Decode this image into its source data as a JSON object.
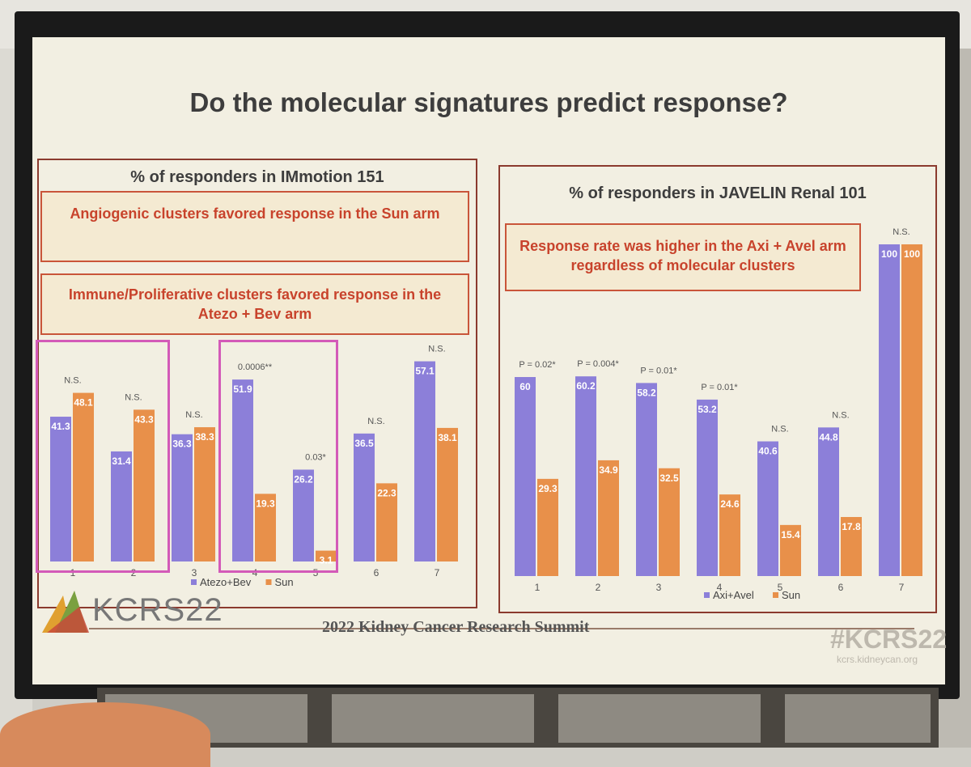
{
  "slide": {
    "title": "Do the molecular signatures predict response?",
    "left": {
      "panel_title": "% of responders in IMmotion 151",
      "callout1": "Angiogenic clusters favored response in the Sun arm",
      "callout2": "Immune/Proliferative clusters favored response in the Atezo + Bev arm"
    },
    "right": {
      "panel_title": "% of responders in JAVELIN Renal 101",
      "callout": "Response rate was higher in the Axi + Avel arm regardless of molecular clusters"
    },
    "logo": {
      "text": "KCRS22"
    },
    "footer": "2022 Kidney Cancer Research Summit",
    "hashtag": "#KCRS22",
    "url": "kcrs.kidneycan.org"
  },
  "colors": {
    "purple": "#8c7fd9",
    "orange": "#e8904a",
    "highlight": "#d35ab8",
    "accent": "#c8432c"
  },
  "chart_data": [
    {
      "type": "bar",
      "categories": [
        "1",
        "2",
        "3",
        "4",
        "5",
        "6",
        "7"
      ],
      "series": [
        {
          "name": "Atezo+Bev",
          "values": [
            41.3,
            31.4,
            36.3,
            51.9,
            26.2,
            36.5,
            57.1
          ]
        },
        {
          "name": "Sun",
          "values": [
            48.1,
            43.3,
            38.3,
            19.3,
            3.1,
            22.3,
            38.1
          ]
        }
      ],
      "annotations": [
        "N.S.",
        "N.S.",
        "N.S.",
        "0.0006**",
        "0.03*",
        "N.S.",
        "N.S."
      ],
      "ylim": [
        0,
        60
      ],
      "legend": "bottom"
    },
    {
      "type": "bar",
      "categories": [
        "1",
        "2",
        "3",
        "4",
        "5",
        "6",
        "7"
      ],
      "series": [
        {
          "name": "Axi+Avel",
          "values": [
            60,
            60.2,
            58.2,
            53.2,
            40.6,
            44.8,
            100
          ]
        },
        {
          "name": "Sun",
          "values": [
            29.3,
            34.9,
            32.5,
            24.6,
            15.4,
            17.8,
            100
          ]
        }
      ],
      "annotations": [
        "P = 0.02*",
        "P = 0.004*",
        "P = 0.01*",
        "P = 0.01*",
        "N.S.",
        "N.S.",
        "N.S."
      ],
      "ylim": [
        0,
        100
      ],
      "legend": "bottom"
    }
  ]
}
